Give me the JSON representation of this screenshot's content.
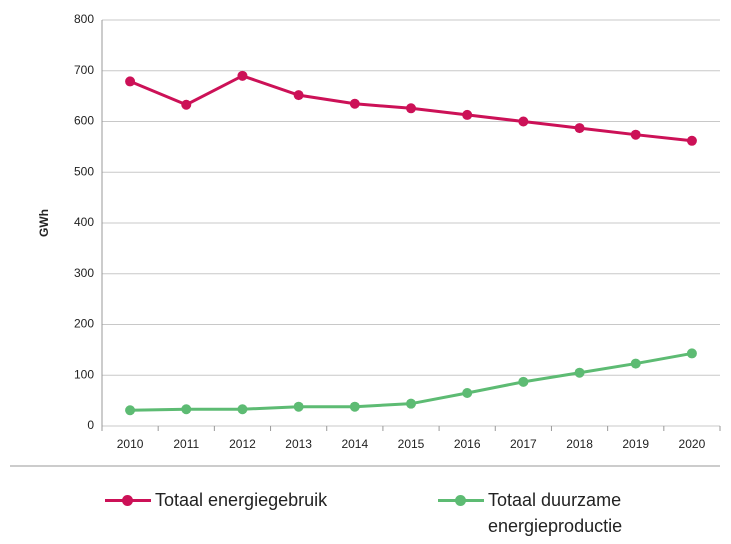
{
  "chart_data": {
    "type": "line",
    "y_label": "GWh",
    "categories": [
      "2010",
      "2011",
      "2012",
      "2013",
      "2014",
      "2015",
      "2016",
      "2017",
      "2018",
      "2019",
      "2020"
    ],
    "series": [
      {
        "name": "Totaal energiegebruik",
        "color": "#cc1157",
        "values": [
          679,
          633,
          690,
          652,
          635,
          626,
          613,
          600,
          587,
          574,
          562
        ]
      },
      {
        "name": "Totaal duurzame energieproductie",
        "color": "#5dbb73",
        "values": [
          31,
          33,
          33,
          38,
          38,
          44,
          65,
          87,
          105,
          123,
          143
        ]
      }
    ],
    "ylim": [
      0,
      800
    ],
    "yticks": [
      0,
      100,
      200,
      300,
      400,
      500,
      600,
      700,
      800
    ],
    "grid": true
  }
}
